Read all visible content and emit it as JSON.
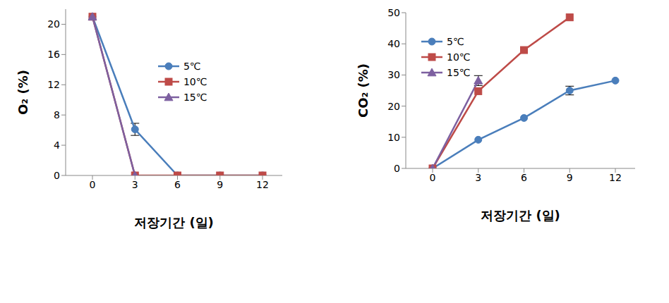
{
  "chart_data": [
    {
      "type": "line",
      "x_label": "저장기간 (일)",
      "y_label": "O₂ (%)",
      "categories": [
        "0",
        "3",
        "6",
        "9",
        "12"
      ],
      "ylim": [
        0,
        22
      ],
      "yticks": [
        0,
        4,
        8,
        12,
        16,
        20
      ],
      "legend": "upper center",
      "series": [
        {
          "name": "5℃",
          "color": "#4a7ebb",
          "marker": "circle",
          "values": [
            21,
            6.1,
            0,
            0,
            0
          ],
          "errors": [
            null,
            0.8,
            null,
            null,
            null
          ]
        },
        {
          "name": "10℃",
          "color": "#be4b48",
          "marker": "square",
          "values": [
            21,
            0,
            0,
            0,
            0
          ],
          "errors": [
            null,
            null,
            null,
            null,
            null
          ]
        },
        {
          "name": "15℃",
          "color": "#7d60a0",
          "marker": "triangle",
          "values": [
            21,
            0,
            null,
            null,
            null
          ],
          "errors": [
            null,
            null,
            null,
            null,
            null
          ]
        }
      ]
    },
    {
      "type": "line",
      "x_label": "저장기간 (일)",
      "y_label": "CO₂ (%)",
      "categories": [
        "0",
        "3",
        "6",
        "9",
        "12"
      ],
      "ylim": [
        0,
        50
      ],
      "yticks": [
        0,
        10,
        20,
        30,
        40,
        50
      ],
      "legend": "upper left",
      "series": [
        {
          "name": "5℃",
          "color": "#4a7ebb",
          "marker": "circle",
          "values": [
            0,
            9.2,
            16.2,
            25,
            28.2
          ],
          "errors": [
            null,
            null,
            null,
            1.4,
            null
          ]
        },
        {
          "name": "10℃",
          "color": "#be4b48",
          "marker": "square",
          "values": [
            0,
            24.8,
            38,
            48.5,
            null
          ],
          "errors": [
            null,
            null,
            null,
            null,
            null
          ]
        },
        {
          "name": "15℃",
          "color": "#7d60a0",
          "marker": "triangle",
          "values": [
            0,
            28.2,
            null,
            null,
            null
          ],
          "errors": [
            null,
            1.6,
            null,
            null,
            null
          ]
        }
      ]
    }
  ]
}
